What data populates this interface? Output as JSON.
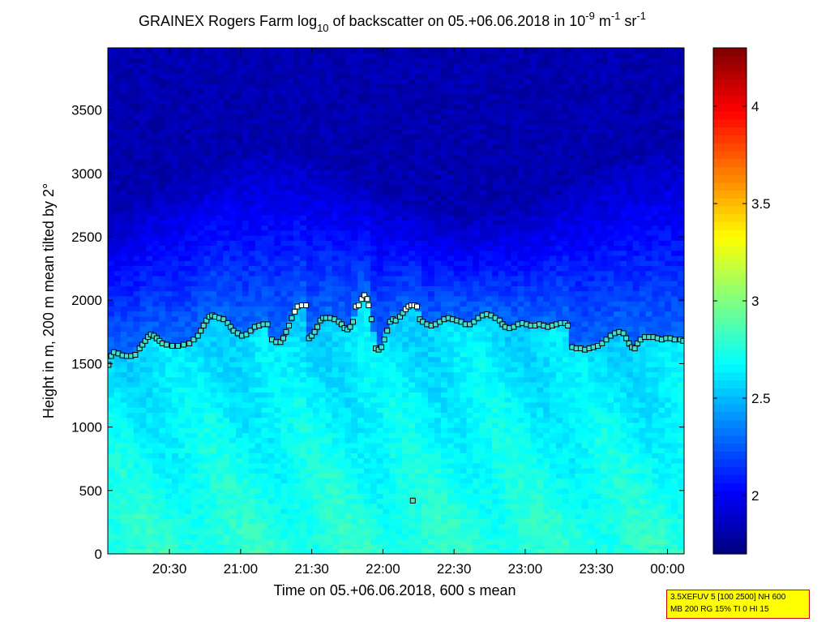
{
  "chart_data": {
    "type": "heatmap",
    "title": {
      "prefix": "GRAINEX Rogers Farm log",
      "prefix_sub": "10",
      "middle": " of backscatter on 05.+06.06.2018 in 10",
      "exp1": "-9",
      "unit1": " m",
      "exp2": "-1",
      "unit2": " sr",
      "exp3": "-1"
    },
    "xlabel": "Time on 05.+06.06.2018, 600 s mean",
    "ylabel": "Height in m, 200 m mean tilted by 2°",
    "x_range_hours": [
      20.0667,
      24.1167
    ],
    "x_ticks": [
      {
        "h": 20.5,
        "label": "20:30"
      },
      {
        "h": 21.0,
        "label": "21:00"
      },
      {
        "h": 21.5,
        "label": "21:30"
      },
      {
        "h": 22.0,
        "label": "22:00"
      },
      {
        "h": 22.5,
        "label": "22:30"
      },
      {
        "h": 23.0,
        "label": "23:00"
      },
      {
        "h": 23.5,
        "label": "23:30"
      },
      {
        "h": 24.0,
        "label": "00:00"
      }
    ],
    "y_range": [
      0,
      3990
    ],
    "y_ticks": [
      0,
      500,
      1000,
      1500,
      2000,
      2500,
      3000,
      3500
    ],
    "colorbar": {
      "range": [
        1.7,
        4.3
      ],
      "ticks": [
        2,
        2.5,
        3,
        3.5,
        4
      ],
      "colormap": "jet",
      "colors": [
        "#00008f",
        "#0000ff",
        "#00ffff",
        "#ffff00",
        "#ff0000",
        "#800000"
      ]
    },
    "field_description_levels": [
      {
        "height": 0,
        "value": 2.75
      },
      {
        "height": 1500,
        "value": 2.55
      },
      {
        "height": 1900,
        "value": 2.15
      },
      {
        "height": 2500,
        "value": 1.95
      },
      {
        "height": 3990,
        "value": 1.75
      }
    ],
    "markers": {
      "label": "",
      "points": [
        [
          20.072,
          1490
        ],
        [
          20.09,
          1560
        ],
        [
          20.11,
          1590
        ],
        [
          20.14,
          1580
        ],
        [
          20.17,
          1565
        ],
        [
          20.2,
          1560
        ],
        [
          20.23,
          1560
        ],
        [
          20.26,
          1570
        ],
        [
          20.29,
          1620
        ],
        [
          20.31,
          1650
        ],
        [
          20.33,
          1680
        ],
        [
          20.35,
          1710
        ],
        [
          20.37,
          1730
        ],
        [
          20.39,
          1720
        ],
        [
          20.41,
          1700
        ],
        [
          20.43,
          1680
        ],
        [
          20.45,
          1660
        ],
        [
          20.48,
          1650
        ],
        [
          20.52,
          1640
        ],
        [
          20.56,
          1640
        ],
        [
          20.6,
          1650
        ],
        [
          20.64,
          1660
        ],
        [
          20.67,
          1690
        ],
        [
          20.7,
          1720
        ],
        [
          20.72,
          1760
        ],
        [
          20.74,
          1800
        ],
        [
          20.76,
          1840
        ],
        [
          20.78,
          1870
        ],
        [
          20.8,
          1880
        ],
        [
          20.82,
          1870
        ],
        [
          20.85,
          1860
        ],
        [
          20.88,
          1850
        ],
        [
          20.91,
          1820
        ],
        [
          20.93,
          1790
        ],
        [
          20.95,
          1760
        ],
        [
          20.98,
          1740
        ],
        [
          21.01,
          1720
        ],
        [
          21.04,
          1730
        ],
        [
          21.07,
          1760
        ],
        [
          21.1,
          1790
        ],
        [
          21.13,
          1800
        ],
        [
          21.16,
          1810
        ],
        [
          21.19,
          1810
        ],
        [
          21.22,
          1690
        ],
        [
          21.25,
          1670
        ],
        [
          21.28,
          1670
        ],
        [
          21.3,
          1700
        ],
        [
          21.32,
          1750
        ],
        [
          21.34,
          1800
        ],
        [
          21.36,
          1860
        ],
        [
          21.38,
          1910
        ],
        [
          21.4,
          1950
        ],
        [
          21.43,
          1960
        ],
        [
          21.46,
          1960
        ],
        [
          21.48,
          1700
        ],
        [
          21.5,
          1720
        ],
        [
          21.52,
          1750
        ],
        [
          21.54,
          1790
        ],
        [
          21.56,
          1840
        ],
        [
          21.58,
          1860
        ],
        [
          21.6,
          1860
        ],
        [
          21.63,
          1860
        ],
        [
          21.66,
          1850
        ],
        [
          21.69,
          1830
        ],
        [
          21.71,
          1810
        ],
        [
          21.73,
          1780
        ],
        [
          21.75,
          1770
        ],
        [
          21.77,
          1790
        ],
        [
          21.79,
          1830
        ],
        [
          21.81,
          1950
        ],
        [
          21.83,
          1960
        ],
        [
          21.85,
          2010
        ],
        [
          21.87,
          2040
        ],
        [
          21.89,
          2010
        ],
        [
          21.9,
          1960
        ],
        [
          21.92,
          1850
        ],
        [
          21.95,
          1620
        ],
        [
          21.97,
          1610
        ],
        [
          21.99,
          1630
        ],
        [
          22.01,
          1690
        ],
        [
          22.03,
          1760
        ],
        [
          22.05,
          1830
        ],
        [
          22.07,
          1850
        ],
        [
          22.09,
          1840
        ],
        [
          22.12,
          1870
        ],
        [
          22.14,
          1900
        ],
        [
          22.16,
          1930
        ],
        [
          22.18,
          1950
        ],
        [
          22.2,
          1960
        ],
        [
          22.22,
          1960
        ],
        [
          22.24,
          1950
        ],
        [
          22.26,
          1850
        ],
        [
          22.28,
          1830
        ],
        [
          22.31,
          1810
        ],
        [
          22.34,
          1800
        ],
        [
          22.37,
          1810
        ],
        [
          22.4,
          1830
        ],
        [
          22.43,
          1850
        ],
        [
          22.46,
          1860
        ],
        [
          22.49,
          1850
        ],
        [
          22.52,
          1840
        ],
        [
          22.55,
          1830
        ],
        [
          22.58,
          1810
        ],
        [
          22.61,
          1810
        ],
        [
          22.64,
          1830
        ],
        [
          22.67,
          1860
        ],
        [
          22.7,
          1880
        ],
        [
          22.73,
          1890
        ],
        [
          22.76,
          1880
        ],
        [
          22.79,
          1860
        ],
        [
          22.82,
          1840
        ],
        [
          22.84,
          1810
        ],
        [
          22.86,
          1790
        ],
        [
          22.89,
          1780
        ],
        [
          22.92,
          1790
        ],
        [
          22.95,
          1810
        ],
        [
          22.98,
          1820
        ],
        [
          23.01,
          1810
        ],
        [
          23.04,
          1800
        ],
        [
          23.07,
          1800
        ],
        [
          23.1,
          1810
        ],
        [
          23.13,
          1800
        ],
        [
          23.16,
          1790
        ],
        [
          23.19,
          1800
        ],
        [
          23.22,
          1810
        ],
        [
          23.25,
          1820
        ],
        [
          23.28,
          1820
        ],
        [
          23.3,
          1800
        ],
        [
          23.33,
          1630
        ],
        [
          23.36,
          1620
        ],
        [
          23.39,
          1620
        ],
        [
          23.42,
          1610
        ],
        [
          23.45,
          1620
        ],
        [
          23.48,
          1630
        ],
        [
          23.51,
          1640
        ],
        [
          23.54,
          1660
        ],
        [
          23.57,
          1690
        ],
        [
          23.6,
          1720
        ],
        [
          23.63,
          1740
        ],
        [
          23.66,
          1750
        ],
        [
          23.69,
          1740
        ],
        [
          23.71,
          1700
        ],
        [
          23.73,
          1660
        ],
        [
          23.75,
          1630
        ],
        [
          23.77,
          1620
        ],
        [
          23.79,
          1660
        ],
        [
          23.81,
          1690
        ],
        [
          23.84,
          1710
        ],
        [
          23.87,
          1710
        ],
        [
          23.9,
          1710
        ],
        [
          23.93,
          1700
        ],
        [
          23.96,
          1690
        ],
        [
          23.99,
          1700
        ],
        [
          24.02,
          1700
        ],
        [
          24.05,
          1690
        ],
        [
          24.09,
          1690
        ],
        [
          24.11,
          1680
        ],
        [
          22.21,
          420
        ]
      ]
    }
  },
  "info_box": {
    "line1": "3.5XEFUV 5 [100 2500] NH 600",
    "line2": "MB 200 RG 15% TI 0 HI 15"
  }
}
